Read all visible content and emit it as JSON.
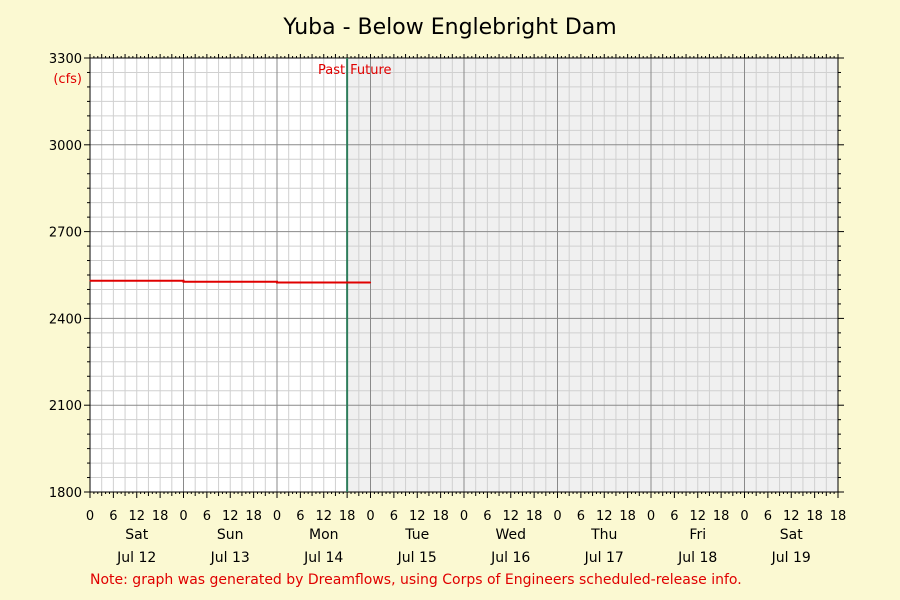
{
  "chart_data": {
    "type": "line",
    "title": "Yuba - Below Englebright Dam",
    "y_unit": "(cfs)",
    "ylim": [
      1800,
      3300
    ],
    "yticks": [
      1800,
      2100,
      2400,
      2700,
      3000,
      3300
    ],
    "x_hour_ticks": [
      "0",
      "6",
      "12",
      "18"
    ],
    "days": [
      {
        "day": "Sat",
        "date": "Jul 12"
      },
      {
        "day": "Sun",
        "date": "Jul 13"
      },
      {
        "day": "Mon",
        "date": "Jul 14"
      },
      {
        "day": "Tue",
        "date": "Jul 15"
      },
      {
        "day": "Wed",
        "date": "Jul 16"
      },
      {
        "day": "Thu",
        "date": "Jul 17"
      },
      {
        "day": "Fri",
        "date": "Jul 18"
      },
      {
        "day": "Sat",
        "date": "Jul 19"
      }
    ],
    "now_marker": {
      "day_index": 2,
      "hour": 18,
      "past_label": "Past",
      "future_label": "Future"
    },
    "series": [
      {
        "color": "#e00000",
        "points": [
          {
            "day_index": 0,
            "hour": 0,
            "y": 2530
          },
          {
            "day_index": 1,
            "hour": 0,
            "y": 2530
          },
          {
            "day_index": 1,
            "hour": 0,
            "y": 2527
          },
          {
            "day_index": 2,
            "hour": 0,
            "y": 2527
          },
          {
            "day_index": 2,
            "hour": 0,
            "y": 2524
          },
          {
            "day_index": 3,
            "hour": 0,
            "y": 2524
          }
        ]
      }
    ],
    "grid": true,
    "colors": {
      "background": "#fbf9d2",
      "plot": "#ffffff",
      "future_shade": "#f0f0f0",
      "now_line": "#2e7d5b",
      "series": "#e00000"
    },
    "note": "Note: graph was generated by Dreamflows, using Corps of Engineers scheduled-release info."
  }
}
